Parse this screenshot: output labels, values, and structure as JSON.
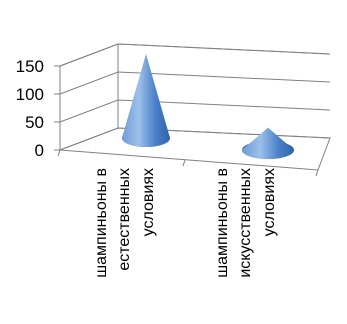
{
  "chart_data": {
    "type": "bar",
    "style": "3d-cone",
    "categories": [
      [
        "шампиньоны в",
        "естественных",
        "условиях"
      ],
      [
        "шампиньоны в",
        "искусственных",
        "условиях"
      ]
    ],
    "values": [
      150,
      40
    ],
    "ylim": [
      0,
      150
    ],
    "yticks": [
      0,
      50,
      100,
      150
    ],
    "grid": true,
    "legend": "none",
    "colors": {
      "cone_light": "#8fb6e6",
      "cone_mid": "#4f86d0",
      "cone_dark": "#2c5f9e",
      "wall": "#808080"
    }
  }
}
